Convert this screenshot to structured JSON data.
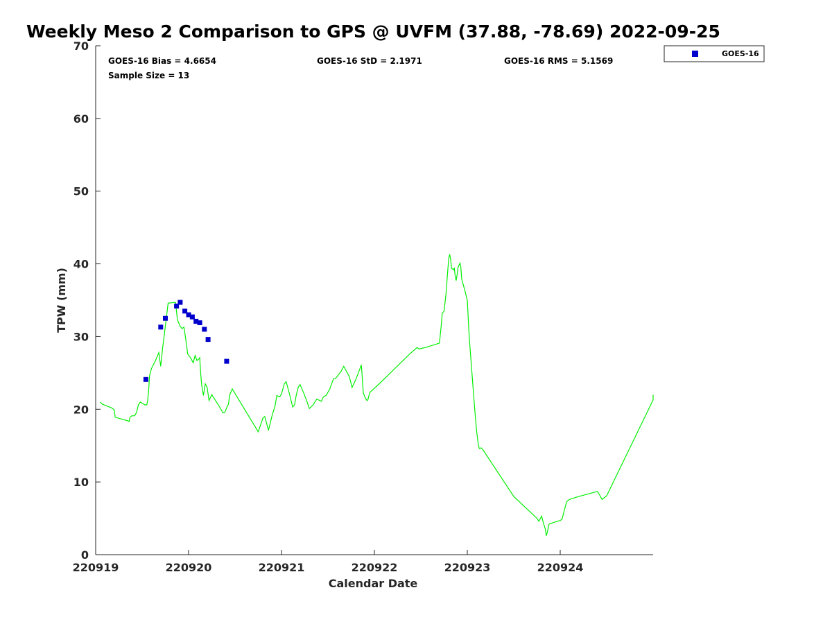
{
  "chart_data": {
    "type": "scatter",
    "title": "Weekly Meso 2 Comparison to GPS @ UVFM (37.88, -78.69) 2022-09-25",
    "xlabel": "Calendar Date",
    "ylabel": "TPW (mm)",
    "xlim": [
      0,
      6
    ],
    "ylim": [
      0,
      70
    ],
    "x_ticks": [
      0,
      1,
      2,
      3,
      4,
      5
    ],
    "x_tick_labels": [
      "220919",
      "220920",
      "220921",
      "220922",
      "220923",
      "220924"
    ],
    "y_ticks": [
      0,
      10,
      20,
      30,
      40,
      50,
      60,
      70
    ],
    "y_tick_labels": [
      "0",
      "10",
      "20",
      "30",
      "40",
      "50",
      "60",
      "70"
    ],
    "grid": false,
    "legend": {
      "position": "outside-top-right",
      "entries": [
        {
          "label": "GOES-16",
          "marker": "square",
          "color": "#0000cc"
        }
      ]
    },
    "stats": {
      "bias": "GOES-16 Bias = 4.6654",
      "std": "GOES-16 StD = 2.1971",
      "rms": "GOES-16 RMS = 5.1569",
      "sample_size": "Sample Size = 13"
    },
    "series": [
      {
        "name": "GPS",
        "type": "line",
        "color": "#00ee00",
        "points": [
          [
            0.05,
            21.0
          ],
          [
            0.07,
            20.7
          ],
          [
            0.17,
            20.2
          ],
          [
            0.2,
            19.9
          ],
          [
            0.21,
            18.9
          ],
          [
            0.35,
            18.4
          ],
          [
            0.36,
            18.3
          ],
          [
            0.37,
            18.9
          ],
          [
            0.39,
            19.1
          ],
          [
            0.42,
            19.1
          ],
          [
            0.44,
            19.6
          ],
          [
            0.46,
            20.6
          ],
          [
            0.48,
            21.0
          ],
          [
            0.53,
            20.6
          ],
          [
            0.55,
            20.6
          ],
          [
            0.56,
            21.2
          ],
          [
            0.57,
            22.6
          ],
          [
            0.58,
            24.6
          ],
          [
            0.6,
            25.6
          ],
          [
            0.64,
            26.6
          ],
          [
            0.68,
            27.8
          ],
          [
            0.7,
            25.9
          ],
          [
            0.72,
            28.4
          ],
          [
            0.74,
            30.4
          ],
          [
            0.76,
            32.5
          ],
          [
            0.78,
            34.6
          ],
          [
            0.86,
            34.7
          ],
          [
            0.88,
            32.3
          ],
          [
            0.91,
            31.4
          ],
          [
            0.93,
            31.1
          ],
          [
            0.95,
            31.3
          ],
          [
            0.97,
            29.6
          ],
          [
            0.99,
            27.6
          ],
          [
            1.02,
            27.1
          ],
          [
            1.05,
            26.4
          ],
          [
            1.07,
            27.4
          ],
          [
            1.09,
            26.7
          ],
          [
            1.11,
            26.9
          ],
          [
            1.12,
            27.1
          ],
          [
            1.13,
            25.0
          ],
          [
            1.14,
            23.4
          ],
          [
            1.16,
            21.9
          ],
          [
            1.18,
            23.5
          ],
          [
            1.2,
            23.0
          ],
          [
            1.21,
            22.1
          ],
          [
            1.22,
            21.2
          ],
          [
            1.25,
            22.0
          ],
          [
            1.28,
            21.4
          ],
          [
            1.33,
            20.4
          ],
          [
            1.37,
            19.5
          ],
          [
            1.39,
            19.6
          ],
          [
            1.42,
            20.5
          ],
          [
            1.43,
            20.7
          ],
          [
            1.44,
            21.9
          ],
          [
            1.46,
            22.5
          ],
          [
            1.47,
            22.8
          ],
          [
            1.56,
            20.9
          ],
          [
            1.66,
            18.8
          ],
          [
            1.75,
            16.9
          ],
          [
            1.8,
            18.8
          ],
          [
            1.82,
            19.0
          ],
          [
            1.86,
            17.1
          ],
          [
            1.9,
            19.2
          ],
          [
            1.93,
            20.4
          ],
          [
            1.95,
            21.9
          ],
          [
            1.98,
            21.7
          ],
          [
            2.0,
            22.1
          ],
          [
            2.03,
            23.5
          ],
          [
            2.05,
            23.8
          ],
          [
            2.09,
            21.9
          ],
          [
            2.12,
            20.3
          ],
          [
            2.14,
            20.6
          ],
          [
            2.16,
            22.0
          ],
          [
            2.18,
            23.0
          ],
          [
            2.2,
            23.4
          ],
          [
            2.24,
            22.2
          ],
          [
            2.27,
            21.2
          ],
          [
            2.3,
            20.1
          ],
          [
            2.34,
            20.6
          ],
          [
            2.38,
            21.4
          ],
          [
            2.43,
            21.1
          ],
          [
            2.45,
            21.7
          ],
          [
            2.48,
            21.9
          ],
          [
            2.52,
            22.8
          ],
          [
            2.56,
            24.2
          ],
          [
            2.58,
            24.2
          ],
          [
            2.64,
            25.2
          ],
          [
            2.67,
            25.9
          ],
          [
            2.73,
            24.5
          ],
          [
            2.76,
            23.0
          ],
          [
            2.8,
            24.1
          ],
          [
            2.83,
            25.1
          ],
          [
            2.86,
            26.1
          ],
          [
            2.87,
            24.2
          ],
          [
            2.88,
            22.3
          ],
          [
            2.9,
            21.6
          ],
          [
            2.92,
            21.2
          ],
          [
            2.93,
            21.3
          ],
          [
            2.95,
            22.3
          ],
          [
            3.0,
            22.9
          ],
          [
            3.06,
            23.6
          ],
          [
            3.14,
            24.6
          ],
          [
            3.22,
            25.6
          ],
          [
            3.3,
            26.6
          ],
          [
            3.38,
            27.6
          ],
          [
            3.46,
            28.5
          ],
          [
            3.48,
            28.3
          ],
          [
            3.55,
            28.5
          ],
          [
            3.7,
            29.1
          ],
          [
            3.72,
            31.6
          ],
          [
            3.73,
            33.2
          ],
          [
            3.75,
            33.5
          ],
          [
            3.77,
            35.8
          ],
          [
            3.79,
            39.2
          ],
          [
            3.8,
            40.7
          ],
          [
            3.81,
            41.3
          ],
          [
            3.82,
            40.7
          ],
          [
            3.83,
            39.4
          ],
          [
            3.85,
            39.2
          ],
          [
            3.86,
            39.4
          ],
          [
            3.87,
            38.3
          ],
          [
            3.88,
            37.7
          ],
          [
            3.89,
            38.5
          ],
          [
            3.9,
            39.5
          ],
          [
            3.92,
            40.1
          ],
          [
            3.93,
            39.6
          ],
          [
            3.94,
            37.9
          ],
          [
            3.97,
            36.5
          ],
          [
            4.0,
            35.0
          ],
          [
            4.02,
            30.0
          ],
          [
            4.05,
            25.0
          ],
          [
            4.08,
            20.0
          ],
          [
            4.1,
            17.0
          ],
          [
            4.12,
            15.0
          ],
          [
            4.13,
            14.6
          ],
          [
            4.15,
            14.7
          ],
          [
            4.17,
            14.4
          ],
          [
            4.5,
            8.0
          ],
          [
            4.75,
            5.0
          ],
          [
            4.77,
            4.6
          ],
          [
            4.8,
            5.3
          ],
          [
            4.82,
            4.3
          ],
          [
            4.84,
            3.5
          ],
          [
            4.85,
            2.6
          ],
          [
            4.86,
            3.0
          ],
          [
            4.88,
            4.2
          ],
          [
            4.92,
            4.4
          ],
          [
            4.97,
            4.6
          ],
          [
            5.0,
            4.7
          ],
          [
            5.02,
            4.9
          ],
          [
            5.05,
            6.4
          ],
          [
            5.07,
            7.3
          ],
          [
            5.1,
            7.6
          ],
          [
            5.2,
            8.0
          ],
          [
            5.4,
            8.7
          ],
          [
            5.42,
            8.3
          ],
          [
            5.45,
            7.6
          ],
          [
            5.5,
            8.1
          ],
          [
            6.0,
            21.3
          ],
          [
            6.01,
            22.0
          ]
        ]
      },
      {
        "name": "GOES-16",
        "type": "scatter",
        "marker": "square",
        "color": "#0000cc",
        "points": [
          [
            0.54,
            24.1
          ],
          [
            0.7,
            31.3
          ],
          [
            0.75,
            32.5
          ],
          [
            0.87,
            34.2
          ],
          [
            0.91,
            34.7
          ],
          [
            0.96,
            33.5
          ],
          [
            1.0,
            33.0
          ],
          [
            1.04,
            32.7
          ],
          [
            1.08,
            32.1
          ],
          [
            1.12,
            31.9
          ],
          [
            1.17,
            31.0
          ],
          [
            1.21,
            29.6
          ],
          [
            1.41,
            26.6
          ]
        ]
      }
    ]
  }
}
